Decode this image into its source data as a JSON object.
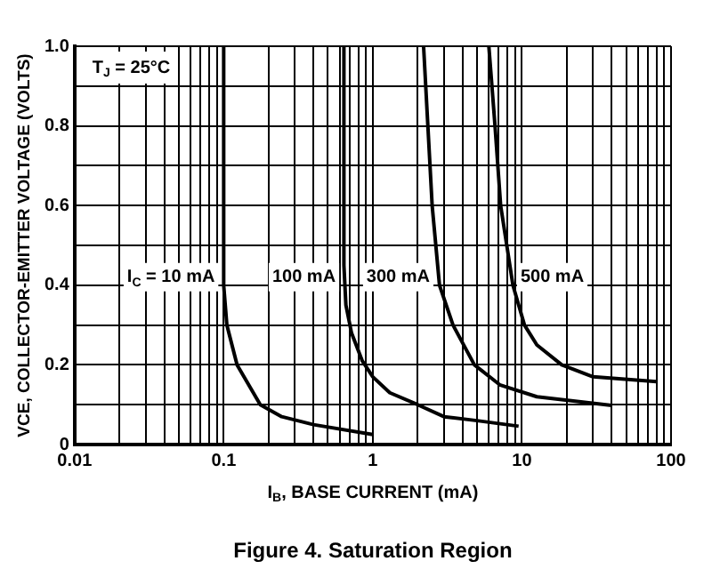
{
  "chart_data": {
    "type": "line",
    "title": "Figure 4. Saturation Region",
    "xlabel": "I$_{B}$, BASE CURRENT (mA)",
    "ylabel": "VCE, COLLECTOR-EMITTER VOLTAGE (VOLTS)",
    "annotations": [
      "T$_{J}$ = 25°C"
    ],
    "log": "x",
    "grid": true,
    "legend": false,
    "marker": "none",
    "xlim": [
      0.01,
      100
    ],
    "ylim": [
      0,
      1
    ],
    "xticks": [
      0.01,
      {
        "value": 0.02,
        "label": null
      },
      {
        "value": 0.03,
        "label": null
      },
      {
        "value": 0.04,
        "label": null
      },
      {
        "value": 0.05,
        "label": null
      },
      {
        "value": 0.06,
        "label": null
      },
      {
        "value": 0.07,
        "label": null
      },
      {
        "value": 0.08,
        "label": null
      },
      {
        "value": 0.09,
        "label": null
      },
      0.1,
      {
        "value": 0.2,
        "label": null
      },
      {
        "value": 0.3,
        "label": null
      },
      {
        "value": 0.4,
        "label": null
      },
      {
        "value": 0.5,
        "label": null
      },
      {
        "value": 0.6,
        "label": null
      },
      {
        "value": 0.7,
        "label": null
      },
      {
        "value": 0.8,
        "label": null
      },
      {
        "value": 0.9,
        "label": null
      },
      1,
      {
        "value": 2,
        "label": null
      },
      {
        "value": 3,
        "label": null
      },
      {
        "value": 4,
        "label": null
      },
      {
        "value": 5,
        "label": null
      },
      {
        "value": 6,
        "label": null
      },
      {
        "value": 7,
        "label": null
      },
      {
        "value": 8,
        "label": null
      },
      {
        "value": 9,
        "label": null
      },
      10,
      {
        "value": 20,
        "label": null
      },
      {
        "value": 30,
        "label": null
      },
      {
        "value": 40,
        "label": null
      },
      {
        "value": 50,
        "label": null
      },
      {
        "value": 60,
        "label": null
      },
      {
        "value": 70,
        "label": null
      },
      {
        "value": 80,
        "label": null
      },
      {
        "value": 90,
        "label": null
      },
      100
    ],
    "yticks": [
      0,
      {
        "value": 0.1,
        "label": null
      },
      0.2,
      {
        "value": 0.3,
        "label": null
      },
      0.4,
      {
        "value": 0.5,
        "label": null
      },
      0.6,
      {
        "value": 0.7,
        "label": null
      },
      0.8,
      {
        "value": 0.9,
        "label": null
      },
      {
        "value": 1,
        "label": "1.0"
      }
    ],
    "series": [
      {
        "name": "I$_{C}$ = 10 mA",
        "color": "#000000",
        "x": [
          0.1,
          0.1,
          0.105,
          0.123,
          0.176,
          0.245,
          0.4,
          1.0
        ],
        "values": [
          1.0,
          0.4,
          0.3,
          0.2,
          0.1,
          0.07,
          0.05,
          0.025
        ]
      },
      {
        "name": "100 mA",
        "color": "#000000",
        "x": [
          0.64,
          0.64,
          0.66,
          0.72,
          0.85,
          1.0,
          1.3,
          2,
          3,
          5,
          9.5
        ],
        "values": [
          1.0,
          0.45,
          0.35,
          0.28,
          0.21,
          0.17,
          0.13,
          0.1,
          0.07,
          0.06,
          0.046
        ]
      },
      {
        "name": "300 mA",
        "color": "#000000",
        "x": [
          2.19,
          2.34,
          2.5,
          2.8,
          3.45,
          4.8,
          7.1,
          12.6,
          40
        ],
        "values": [
          1.0,
          0.8,
          0.6,
          0.4,
          0.3,
          0.2,
          0.15,
          0.12,
          0.098
        ]
      },
      {
        "name": "500 mA",
        "color": "#000000",
        "x": [
          6.0,
          6.6,
          7.2,
          8.7,
          10.4,
          12.6,
          18.5,
          30,
          80
        ],
        "values": [
          1.0,
          0.8,
          0.6,
          0.4,
          0.3,
          0.25,
          0.2,
          0.17,
          0.158
        ]
      }
    ]
  }
}
